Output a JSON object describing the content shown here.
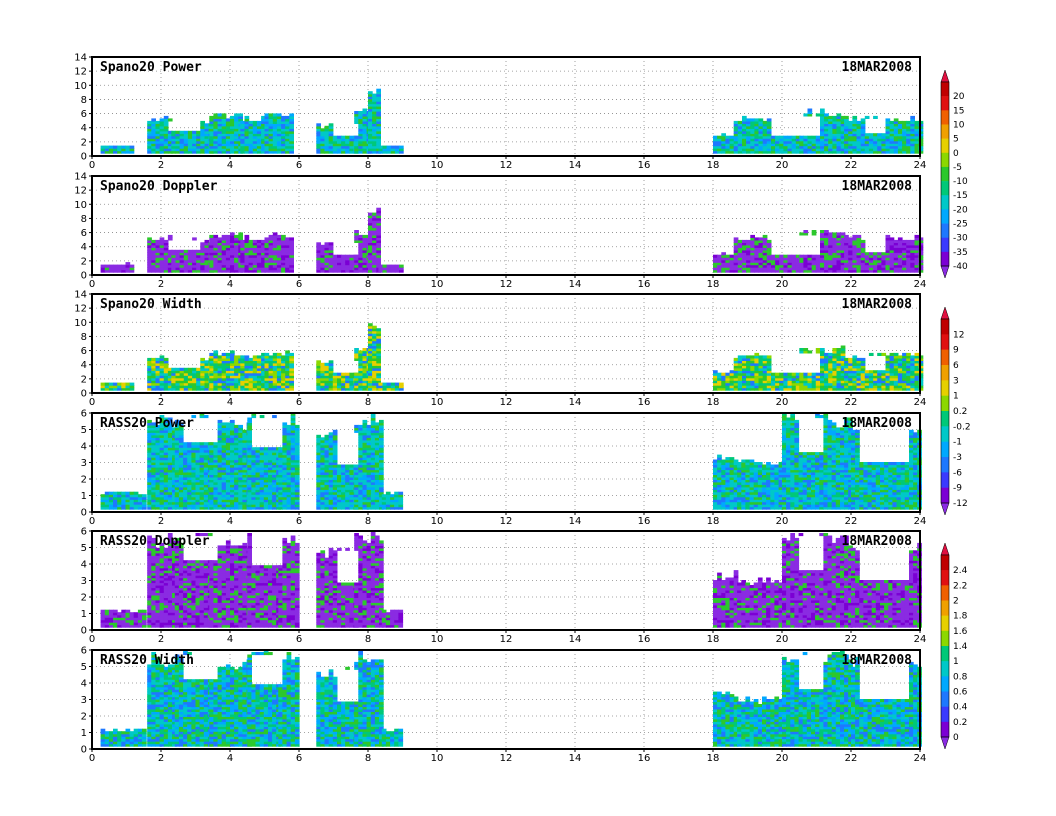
{
  "date": "18MAR2008",
  "colors": {
    "palette": [
      "#7b00d4",
      "#8a2be2",
      "#3a3aff",
      "#1e78ff",
      "#00a8ff",
      "#00c8c8",
      "#00c878",
      "#2cc82c",
      "#8cd800",
      "#e6d000",
      "#f0a000",
      "#f06000",
      "#e01010",
      "#b00000"
    ]
  },
  "chart_data": [
    {
      "type": "heatmap",
      "title": "Spano20 Power",
      "date": "18MAR2008",
      "ylim": [
        0,
        14
      ],
      "yticks": [
        "0",
        "2",
        "4",
        "6",
        "8",
        "10",
        "12",
        "14"
      ],
      "xlim": [
        0,
        24
      ],
      "xticks": [
        "0",
        "2",
        "4",
        "6",
        "8",
        "10",
        "12",
        "14",
        "16",
        "18",
        "20",
        "22",
        "24"
      ],
      "colorbar": "power",
      "variable": "power"
    },
    {
      "type": "heatmap",
      "title": "Spano20 Doppler",
      "date": "18MAR2008",
      "ylim": [
        0,
        14
      ],
      "yticks": [
        "0",
        "2",
        "4",
        "6",
        "8",
        "10",
        "12",
        "14"
      ],
      "xlim": [
        0,
        24
      ],
      "xticks": [
        "0",
        "2",
        "4",
        "6",
        "8",
        "10",
        "12",
        "14",
        "16",
        "18",
        "20",
        "22",
        "24"
      ],
      "colorbar": "power",
      "variable": "doppler"
    },
    {
      "type": "heatmap",
      "title": "Spano20 Width",
      "date": "18MAR2008",
      "ylim": [
        0,
        14
      ],
      "yticks": [
        "0",
        "2",
        "4",
        "6",
        "8",
        "10",
        "12",
        "14"
      ],
      "xlim": [
        0,
        24
      ],
      "xticks": [
        "0",
        "2",
        "4",
        "6",
        "8",
        "10",
        "12",
        "14",
        "16",
        "18",
        "20",
        "22",
        "24"
      ],
      "colorbar": "doppler",
      "variable": "width"
    },
    {
      "type": "heatmap",
      "title": "RASS20 Power",
      "date": "18MAR2008",
      "ylim": [
        0,
        6
      ],
      "yticks": [
        "0",
        "1",
        "2",
        "3",
        "4",
        "5",
        "6"
      ],
      "xlim": [
        0,
        24
      ],
      "xticks": [
        "0",
        "2",
        "4",
        "6",
        "8",
        "10",
        "12",
        "14",
        "16",
        "18",
        "20",
        "22",
        "24"
      ],
      "colorbar": "doppler",
      "variable": "power"
    },
    {
      "type": "heatmap",
      "title": "RASS20 Doppler",
      "date": "18MAR2008",
      "ylim": [
        0,
        6
      ],
      "yticks": [
        "0",
        "1",
        "2",
        "3",
        "4",
        "5",
        "6"
      ],
      "xlim": [
        0,
        24
      ],
      "xticks": [
        "0",
        "2",
        "4",
        "6",
        "8",
        "10",
        "12",
        "14",
        "16",
        "18",
        "20",
        "22",
        "24"
      ],
      "colorbar": "width",
      "variable": "doppler"
    },
    {
      "type": "heatmap",
      "title": "RASS20 Width",
      "date": "18MAR2008",
      "ylim": [
        0,
        6
      ],
      "yticks": [
        "0",
        "1",
        "2",
        "3",
        "4",
        "5",
        "6"
      ],
      "xlim": [
        0,
        24
      ],
      "xticks": [
        "0",
        "2",
        "4",
        "6",
        "8",
        "10",
        "12",
        "14",
        "16",
        "18",
        "20",
        "22",
        "24"
      ],
      "colorbar": "width",
      "variable": "width"
    }
  ],
  "colorbars": [
    {
      "id": "power",
      "labels": [
        "20",
        "15",
        "10",
        "5",
        "0",
        "-5",
        "-10",
        "-15",
        "-20",
        "-25",
        "-30",
        "-35",
        "-40"
      ]
    },
    {
      "id": "doppler",
      "labels": [
        "12",
        "9",
        "6",
        "3",
        "1",
        "0.2",
        "-0.2",
        "-1",
        "-3",
        "-6",
        "-9",
        "-12"
      ]
    },
    {
      "id": "width",
      "labels": [
        "2.4",
        "2.2",
        "2",
        "1.8",
        "1.6",
        "1.4",
        "1",
        "0.8",
        "0.6",
        "0.4",
        "0.2",
        "0"
      ]
    }
  ]
}
